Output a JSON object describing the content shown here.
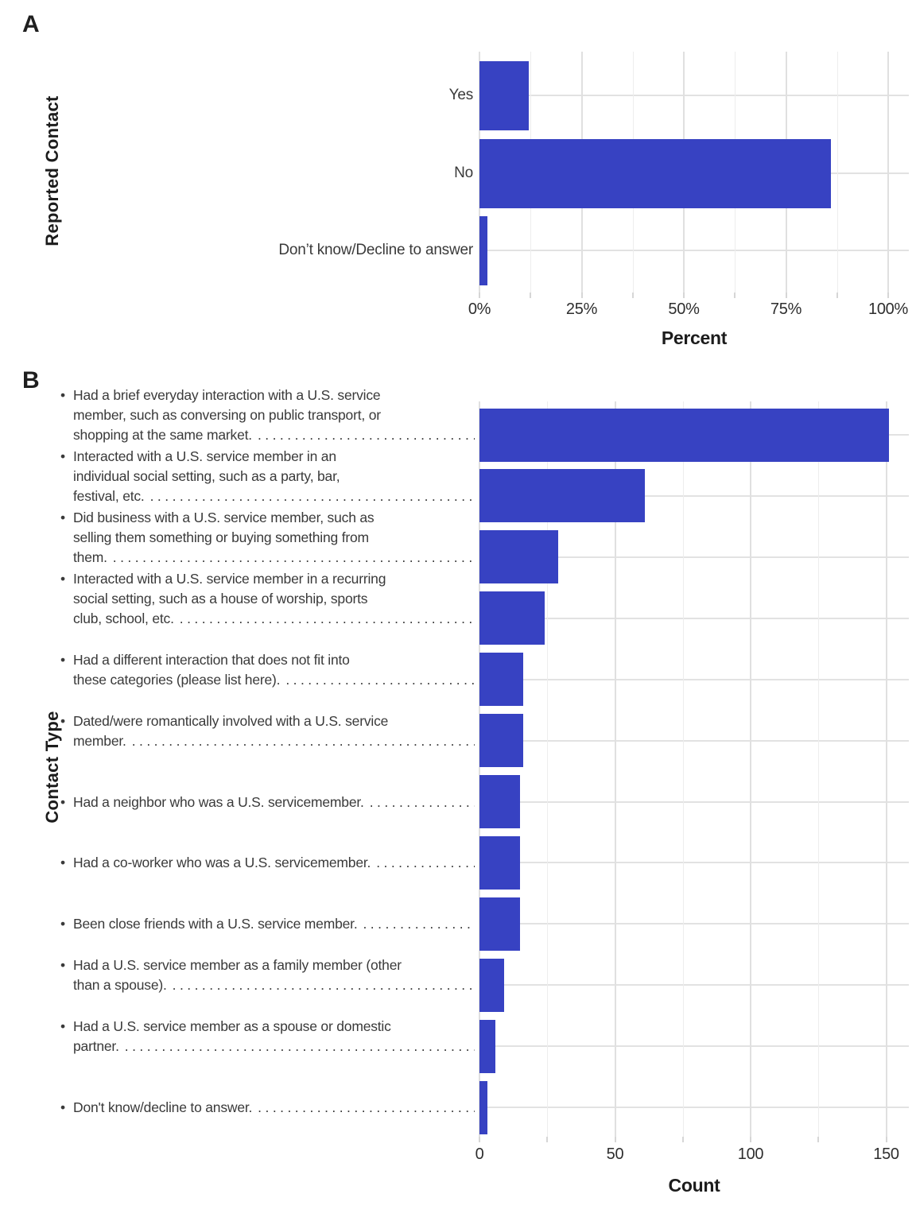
{
  "figure": {
    "background": "#FFFFFF"
  },
  "colors": {
    "bar": "#3742C2",
    "grid_major": "#E0E0E0",
    "grid_minor": "#EDEDED",
    "tick_mark": "#D6D6D6",
    "text": "#3a3a3a",
    "title_text": "#1c1c1c"
  },
  "panels": {
    "a": {
      "tag": "A",
      "ylabel": "Reported Contact",
      "xlabel": "Percent",
      "xtick_labels": [
        "0%",
        "25%",
        "50%",
        "75%",
        "100%"
      ]
    },
    "b": {
      "tag": "B",
      "ylabel": "Contact Type",
      "xlabel": "Count",
      "xtick_labels": [
        "0",
        "50",
        "100",
        "150"
      ]
    }
  },
  "chart_data": [
    {
      "type": "bar",
      "panel": "A",
      "orientation": "horizontal",
      "title": "",
      "categories": [
        "Yes",
        "No",
        "Don’t know/Decline to answer"
      ],
      "values": [
        12,
        86,
        2
      ],
      "value_unit": "percent",
      "xlabel": "Percent",
      "ylabel": "Reported Contact",
      "xlim": [
        0,
        105
      ],
      "xticks": [
        0,
        25,
        50,
        75,
        100
      ],
      "minor_xticks": [
        12.5,
        37.5,
        62.5,
        87.5
      ],
      "grid": "major+minor",
      "legend": "none",
      "bar_color": "#3742C2"
    },
    {
      "type": "bar",
      "panel": "B",
      "orientation": "horizontal",
      "title": "",
      "categories": [
        "Had a brief everyday interaction with a U.S. service member, such as conversing on public transport, or shopping at the same market.",
        "Interacted with a U.S. service member in an individual social setting, such as a party, bar, festival, etc.",
        "Did business with a U.S. service member, such as selling them something or buying something from them.",
        "Interacted with a U.S. service member in a recurring social setting, such as a house of worship, sports club, school, etc.",
        "Had a different interaction that does not fit into these categories (please list here).",
        "Dated/were romantically involved with a U.S. service member.",
        "Had a neighbor who was a U.S. servicemember.",
        "Had a co-worker who was a U.S. servicemember.",
        "Been close friends with a U.S. service member.",
        "Had a U.S. service member as a family member (other than a spouse).",
        "Had a U.S. service member as a spouse or domestic partner.",
        "Don't know/decline to answer."
      ],
      "category_lines": [
        [
          "Had a brief everyday interaction with a U.S. service",
          "member, such as conversing on public transport, or",
          "shopping at the same market."
        ],
        [
          "Interacted with a U.S. service member in an",
          "individual social setting, such as a party, bar,",
          "festival, etc."
        ],
        [
          "Did business with a U.S. service member, such as",
          "selling them something or buying something from",
          "them."
        ],
        [
          "Interacted with a U.S. service member in a recurring",
          "social setting, such as a house of worship, sports",
          "club, school, etc."
        ],
        [
          "Had a different interaction that does not fit into",
          "these categories (please list here)."
        ],
        [
          "Dated/were romantically involved with a U.S. service",
          "member."
        ],
        [
          "Had a neighbor who was a U.S. servicemember."
        ],
        [
          "Had a co-worker who was a U.S. servicemember."
        ],
        [
          "Been close friends with a U.S. service member."
        ],
        [
          "Had a U.S. service member as a family member (other",
          "than a spouse)."
        ],
        [
          "Had a U.S. service member as a spouse or domestic",
          "partner."
        ],
        [
          "Don't know/decline to answer."
        ]
      ],
      "values": [
        151,
        61,
        29,
        24,
        16,
        16,
        15,
        15,
        15,
        9,
        6,
        3
      ],
      "value_unit": "count",
      "xlabel": "Count",
      "ylabel": "Contact Type",
      "xlim": [
        0,
        158
      ],
      "xticks": [
        0,
        50,
        100,
        150
      ],
      "minor_xticks": [
        25,
        75,
        125
      ],
      "grid": "major+minor",
      "legend": "none",
      "bar_color": "#3742C2"
    }
  ]
}
